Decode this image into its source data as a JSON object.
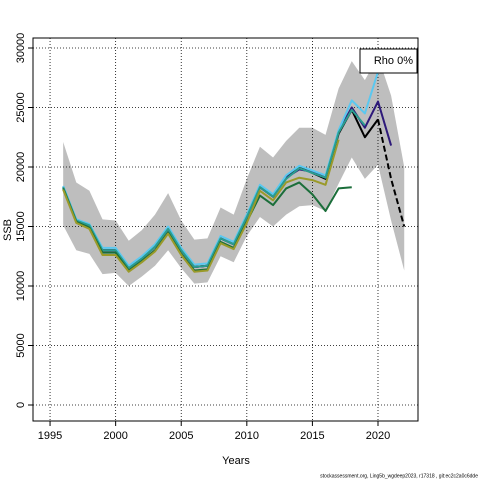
{
  "chart_data": {
    "type": "line",
    "xlabel": "Years",
    "ylabel": "SSB",
    "legend": "Rho 0%",
    "footer": "stockassessment.org, Ling5b_wgdeep2023, r17318 , git:ec2c2a0c6dde",
    "x": [
      1996,
      1997,
      1998,
      1999,
      2000,
      2001,
      2002,
      2003,
      2004,
      2005,
      2006,
      2007,
      2008,
      2009,
      2010,
      2011,
      2012,
      2013,
      2014,
      2015,
      2016,
      2017,
      2018,
      2019,
      2020,
      2021,
      2022
    ],
    "band_color": "#bebebe",
    "band_upper": [
      22100,
      18700,
      18000,
      15600,
      15500,
      13800,
      14700,
      16000,
      17800,
      15500,
      13900,
      14000,
      16600,
      16000,
      19000,
      21700,
      20800,
      22200,
      23300,
      23300,
      22700,
      26600,
      28900,
      27300,
      29300,
      26000,
      20000
    ],
    "band_lower": [
      15100,
      13000,
      12700,
      11000,
      11100,
      10000,
      10800,
      11700,
      13000,
      11500,
      10200,
      10300,
      12500,
      12000,
      14200,
      15800,
      15000,
      16000,
      16700,
      16800,
      16300,
      18600,
      20800,
      19000,
      20200,
      15500,
      11300
    ],
    "series": [
      {
        "color": "#000000",
        "dash": false,
        "values": [
          18300,
          15500,
          15100,
          13000,
          13000,
          11500,
          12300,
          13300,
          14800,
          13000,
          11600,
          11700,
          14000,
          13500,
          15800,
          18300,
          17500,
          19100,
          20000,
          19500,
          19000,
          22800,
          24800,
          22500,
          24000,
          null,
          null
        ]
      },
      {
        "color": "#000000",
        "dash": true,
        "values": [
          null,
          null,
          null,
          null,
          null,
          null,
          null,
          null,
          null,
          null,
          null,
          null,
          null,
          null,
          null,
          null,
          null,
          null,
          null,
          null,
          null,
          null,
          null,
          null,
          24000,
          19000,
          15000
        ]
      },
      {
        "color": "#2e1a7a",
        "dash": false,
        "values": [
          18300,
          15500,
          15100,
          13000,
          13000,
          11500,
          12300,
          13300,
          14800,
          13000,
          11600,
          11700,
          14000,
          13500,
          15800,
          18300,
          17500,
          19100,
          19800,
          19600,
          19100,
          23000,
          25000,
          23300,
          25500,
          21800,
          null
        ]
      },
      {
        "color": "#5bc8f0",
        "dash": false,
        "values": [
          18400,
          15600,
          15200,
          13200,
          13200,
          11700,
          12500,
          13500,
          15000,
          13200,
          11800,
          11900,
          14200,
          13700,
          16000,
          18500,
          17700,
          19300,
          20100,
          19700,
          19300,
          23100,
          25600,
          24500,
          28000,
          null,
          null
        ]
      },
      {
        "color": "#2a9d8f",
        "dash": false,
        "values": [
          18300,
          15500,
          15100,
          13000,
          13000,
          11500,
          12300,
          13300,
          14800,
          13000,
          11600,
          11700,
          14000,
          13500,
          15800,
          18300,
          17500,
          19000,
          19900,
          19500,
          19100,
          22900,
          24800,
          23500,
          null,
          null,
          null
        ]
      },
      {
        "color": "#1b6e3a",
        "dash": false,
        "values": [
          18200,
          15400,
          14900,
          12800,
          12800,
          11300,
          12100,
          13000,
          14500,
          12700,
          11300,
          11400,
          13700,
          13200,
          15400,
          17600,
          16800,
          18200,
          18700,
          17700,
          16300,
          18200,
          18300,
          null,
          null,
          null,
          null
        ]
      },
      {
        "color": "#9a9a2a",
        "dash": false,
        "values": [
          18100,
          15300,
          14800,
          12600,
          12600,
          11200,
          12000,
          12900,
          14400,
          12600,
          11200,
          11300,
          13600,
          13100,
          15300,
          18000,
          17200,
          18700,
          19100,
          18900,
          18500,
          22300,
          null,
          null,
          null,
          null,
          null
        ]
      }
    ],
    "xlim": [
      1993.7,
      2023.05
    ],
    "ylim": [
      -1345,
      30840
    ],
    "xticks": [
      1995,
      2000,
      2005,
      2010,
      2015,
      2020
    ],
    "yticks": [
      0,
      5000,
      10000,
      15000,
      20000,
      25000,
      30000
    ],
    "grid": true
  }
}
